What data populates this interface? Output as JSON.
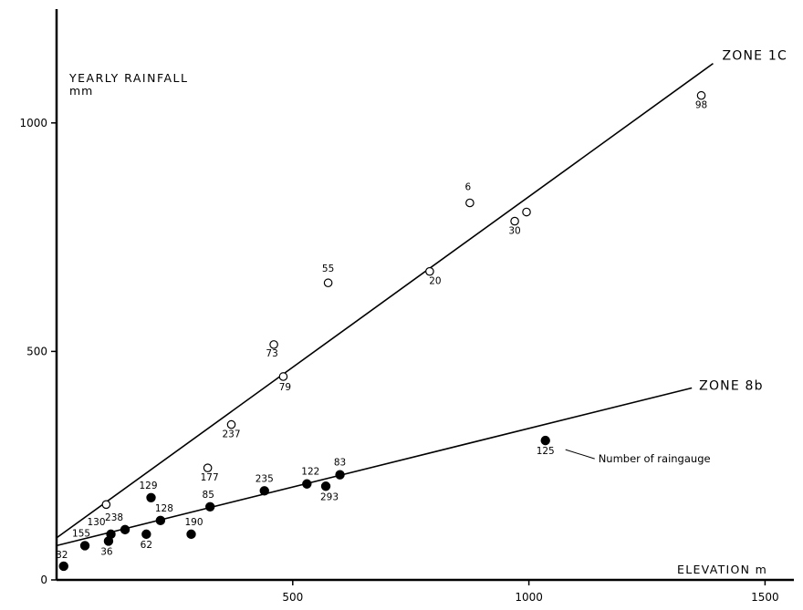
{
  "chart_data": {
    "type": "scatter",
    "title": "",
    "xlabel": "ELEVATION m",
    "ylabel": "YEARLY RAINFALL mm",
    "ylabel_lines": [
      "YEARLY RAINFALL",
      "mm"
    ],
    "xlim": [
      0,
      1600
    ],
    "ylim": [
      0,
      1250
    ],
    "xticks": [
      500,
      1000,
      1500
    ],
    "yticks": [
      0,
      500,
      1000
    ],
    "grid": false,
    "annotation": "Number of raingauge",
    "annotation_point": 125,
    "series": [
      {
        "name": "ZONE 1C",
        "marker": "open-circle",
        "fit_line": {
          "x": [
            0,
            1390
          ],
          "y": [
            92,
            1130
          ]
        },
        "points": [
          {
            "label": "",
            "x": 105,
            "y": 165
          },
          {
            "label": "177",
            "x": 320,
            "y": 245
          },
          {
            "label": "237",
            "x": 370,
            "y": 340
          },
          {
            "label": "73",
            "x": 460,
            "y": 515
          },
          {
            "label": "79",
            "x": 480,
            "y": 445
          },
          {
            "label": "55",
            "x": 575,
            "y": 650
          },
          {
            "label": "20",
            "x": 790,
            "y": 675
          },
          {
            "label": "6",
            "x": 875,
            "y": 825
          },
          {
            "label": "30",
            "x": 970,
            "y": 785
          },
          {
            "label": "",
            "x": 995,
            "y": 805
          },
          {
            "label": "98",
            "x": 1365,
            "y": 1060
          }
        ]
      },
      {
        "name": "ZONE 8b",
        "marker": "filled-circle",
        "fit_line": {
          "x": [
            0,
            1345
          ],
          "y": [
            75,
            420
          ]
        },
        "points": [
          {
            "label": "32",
            "x": 15,
            "y": 30
          },
          {
            "label": "155",
            "x": 60,
            "y": 75
          },
          {
            "label": "36",
            "x": 110,
            "y": 85
          },
          {
            "label": "130",
            "x": 115,
            "y": 100
          },
          {
            "label": "238",
            "x": 145,
            "y": 110
          },
          {
            "label": "62",
            "x": 190,
            "y": 100
          },
          {
            "label": "129",
            "x": 200,
            "y": 180
          },
          {
            "label": "128",
            "x": 220,
            "y": 130
          },
          {
            "label": "190",
            "x": 285,
            "y": 100
          },
          {
            "label": "85",
            "x": 325,
            "y": 160
          },
          {
            "label": "235",
            "x": 440,
            "y": 195
          },
          {
            "label": "122",
            "x": 530,
            "y": 210
          },
          {
            "label": "293",
            "x": 570,
            "y": 205
          },
          {
            "label": "83",
            "x": 600,
            "y": 230
          },
          {
            "label": "125",
            "x": 1035,
            "y": 305
          }
        ]
      }
    ]
  }
}
